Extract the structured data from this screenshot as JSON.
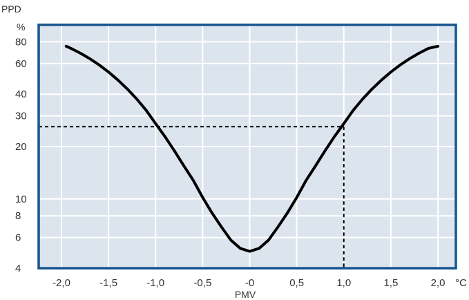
{
  "chart_data": {
    "type": "line",
    "title": "",
    "ylabel": "PPD",
    "yunit": "%",
    "xlabel": "PMV",
    "xunit": "°C",
    "xlim": [
      -2.0,
      2.0
    ],
    "ylim": [
      4,
      100
    ],
    "yscale": "log",
    "grid": true,
    "x_ticks": [
      -2.0,
      -1.5,
      -1.0,
      -0.5,
      0,
      0.5,
      1.0,
      1.5,
      2.0
    ],
    "x_tick_labels": [
      "-2,0",
      "-1,5",
      "-1,0",
      "-0,5",
      "-0",
      "0,5",
      "1,0",
      "1,5",
      "2,0"
    ],
    "y_ticks": [
      4,
      6,
      8,
      10,
      20,
      30,
      40,
      60,
      80
    ],
    "y_tick_labels": [
      "4",
      "6",
      "8",
      "10",
      "20",
      "30",
      "40",
      "60",
      "80"
    ],
    "series": [
      {
        "x": [
          -1.95,
          -1.9,
          -1.8,
          -1.7,
          -1.6,
          -1.5,
          -1.4,
          -1.3,
          -1.2,
          -1.1,
          -1.0,
          -0.9,
          -0.8,
          -0.7,
          -0.6,
          -0.5,
          -0.4,
          -0.3,
          -0.2,
          -0.1,
          0,
          0.1,
          0.2,
          0.3,
          0.4,
          0.5,
          0.6,
          0.7,
          0.8,
          0.9,
          1.0,
          1.1,
          1.2,
          1.3,
          1.4,
          1.5,
          1.6,
          1.7,
          1.8,
          1.9,
          2.0
        ],
        "y": [
          75.4,
          73.3,
          68.8,
          64.0,
          58.9,
          53.6,
          48.2,
          42.8,
          37.5,
          32.3,
          27.1,
          22.8,
          18.9,
          15.5,
          12.8,
          10.2,
          8.3,
          6.9,
          5.8,
          5.2,
          5.0,
          5.2,
          5.8,
          6.9,
          8.3,
          10.2,
          12.8,
          15.5,
          18.9,
          22.8,
          27.1,
          32.3,
          37.5,
          42.8,
          48.2,
          53.6,
          58.9,
          64.0,
          68.8,
          73.3,
          75.4
        ]
      }
    ],
    "annotation": {
      "style": "dashed",
      "y": 26,
      "x_left": -0.95,
      "x_right": 1.0
    },
    "colors": {
      "plot_background": "#dce5ee",
      "border": "#17558f",
      "grid": "#ffffff",
      "curve": "#000000",
      "text": "#333333"
    }
  }
}
